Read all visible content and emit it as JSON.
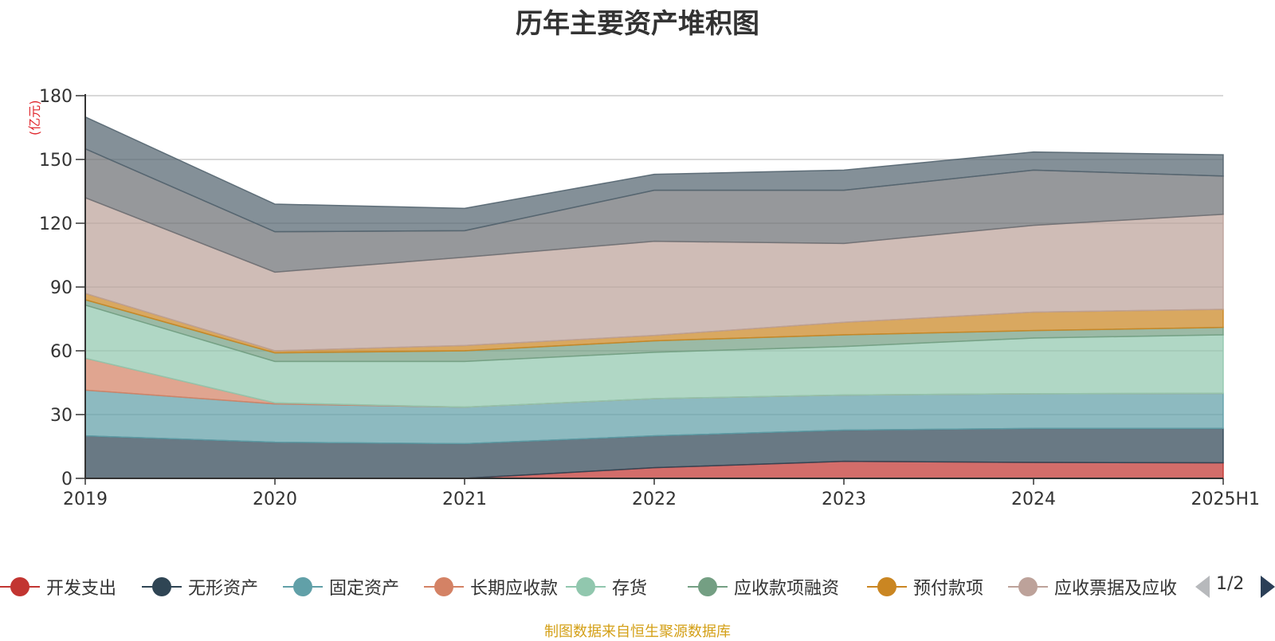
{
  "chart_data": {
    "type": "area",
    "stacked": true,
    "title": "历年主要资产堆积图",
    "unit": "(亿元)",
    "categories": [
      "2019",
      "2020",
      "2021",
      "2022",
      "2023",
      "2024",
      "2025H1"
    ],
    "ylim": [
      0,
      180
    ],
    "yticks": [
      0,
      30,
      60,
      90,
      120,
      150,
      180
    ],
    "grid": true,
    "series": [
      {
        "name": "开发支出",
        "color": "#c23531",
        "values": [
          0,
          0,
          0,
          5,
          8,
          7.5,
          7.3
        ]
      },
      {
        "name": "无形资产",
        "color": "#2f4554",
        "values": [
          20,
          17,
          16.3,
          15,
          14.7,
          16,
          16.2
        ]
      },
      {
        "name": "固定资产",
        "color": "#61a0a8",
        "values": [
          21.5,
          18,
          17.2,
          17.5,
          16.5,
          16.3,
          16.5
        ]
      },
      {
        "name": "长期应收款",
        "color": "#d48265",
        "values": [
          15,
          0.5,
          0,
          0,
          0,
          0,
          0
        ]
      },
      {
        "name": "存货",
        "color": "#91c7ae",
        "values": [
          25,
          19.5,
          21.5,
          21.8,
          22.8,
          26.2,
          27.5
        ]
      },
      {
        "name": "应收款项融资",
        "color": "#749f83",
        "values": [
          2.5,
          4,
          5,
          5.4,
          5.5,
          3.5,
          3.5
        ]
      },
      {
        "name": "预付款项",
        "color": "#ca8622",
        "values": [
          3,
          1,
          2.5,
          2.5,
          5.9,
          8.7,
          8.5
        ]
      },
      {
        "name": "应收票据及应收账款",
        "color": "#bda29a",
        "values": [
          45,
          37,
          41.5,
          44.3,
          37.1,
          40.8,
          44.7
        ]
      },
      {
        "name": "",
        "color": "#6e7074",
        "values": [
          23,
          19,
          12.5,
          24,
          25,
          26,
          18
        ]
      },
      {
        "name": "",
        "color": "#546570",
        "values": [
          15,
          13,
          10.5,
          7.5,
          9.5,
          8.5,
          10
        ]
      }
    ]
  },
  "legend": {
    "items": [
      {
        "label": "开发支出",
        "color": "#c23531"
      },
      {
        "label": "无形资产",
        "color": "#2f4554"
      },
      {
        "label": "固定资产",
        "color": "#61a0a8"
      },
      {
        "label": "长期应收款",
        "color": "#d48265"
      },
      {
        "label": "存货",
        "color": "#91c7ae"
      },
      {
        "label": "应收款项融资",
        "color": "#749f83"
      },
      {
        "label": "预付款项",
        "color": "#ca8622"
      },
      {
        "label": "应收票据及应收",
        "color": "#bda29a"
      }
    ],
    "page_text": "1/2"
  },
  "source": "制图数据来自恒生聚源数据库"
}
